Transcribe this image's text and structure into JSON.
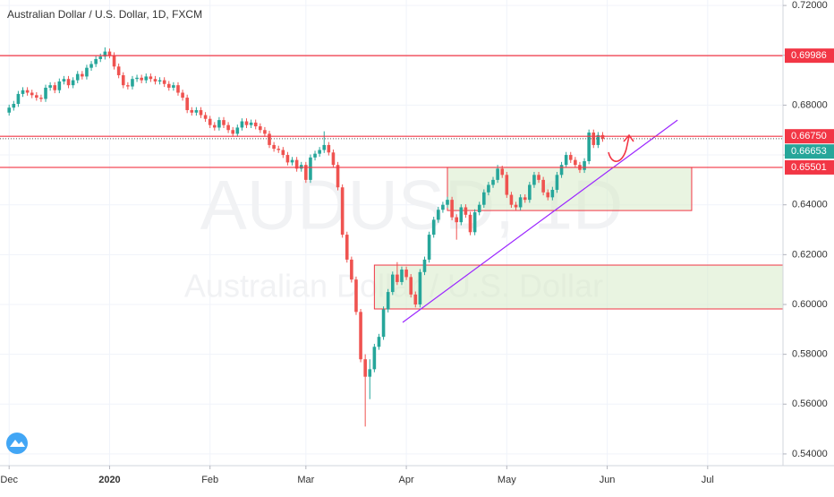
{
  "chart_data": {
    "type": "candlestick",
    "title": "Australian Dollar / U.S. Dollar, 1D, FXCM",
    "watermark": "AUDUSD, 1D",
    "watermark_subtitle": "Australian Dollar / U.S. Dollar",
    "up_color": "#26a69a",
    "down_color": "#ef5350",
    "grid": true,
    "xlim": [
      -2,
      169.5
    ],
    "xticks": [
      {
        "value": 0,
        "label": "Dec"
      },
      {
        "value": 22,
        "label": "2020"
      },
      {
        "value": 44,
        "label": "Feb"
      },
      {
        "value": 65,
        "label": "Mar"
      },
      {
        "value": 87,
        "label": "Apr"
      },
      {
        "value": 109,
        "label": "May"
      },
      {
        "value": 131,
        "label": "Jun"
      },
      {
        "value": 153,
        "label": "Jul"
      }
    ],
    "ylim": [
      0.5353,
      0.7222
    ],
    "yticks": [
      {
        "value": 0.72,
        "label": "0.72000"
      },
      {
        "value": 0.7,
        "label": "0.70000"
      },
      {
        "value": 0.68,
        "label": "0.68000"
      },
      {
        "value": 0.66,
        "label": "0.66000"
      },
      {
        "value": 0.64,
        "label": "0.64000"
      },
      {
        "value": 0.62,
        "label": "0.62000"
      },
      {
        "value": 0.6,
        "label": "0.60000"
      },
      {
        "value": 0.58,
        "label": "0.58000"
      },
      {
        "value": 0.56,
        "label": "0.56000"
      },
      {
        "value": 0.54,
        "label": "0.54000"
      }
    ],
    "open": [
      0.677,
      0.679,
      0.6805,
      0.6845,
      0.686,
      0.685,
      0.684,
      0.683,
      0.6825,
      0.687,
      0.688,
      0.686,
      0.6895,
      0.6905,
      0.688,
      0.69,
      0.6925,
      0.6915,
      0.695,
      0.6965,
      0.6985,
      0.6995,
      0.7015,
      0.7,
      0.6955,
      0.692,
      0.688,
      0.6875,
      0.6905,
      0.691,
      0.69,
      0.6915,
      0.6905,
      0.6895,
      0.69,
      0.6885,
      0.687,
      0.688,
      0.685,
      0.683,
      0.678,
      0.677,
      0.678,
      0.676,
      0.6745,
      0.672,
      0.671,
      0.674,
      0.672,
      0.67,
      0.6685,
      0.671,
      0.6735,
      0.672,
      0.673,
      0.6715,
      0.67,
      0.6685,
      0.664,
      0.6625,
      0.662,
      0.66,
      0.657,
      0.658,
      0.6545,
      0.656,
      0.65,
      0.659,
      0.6605,
      0.662,
      0.664,
      0.661,
      0.656,
      0.647,
      0.628,
      0.618,
      0.61,
      0.597,
      0.578,
      0.571,
      0.574,
      0.583,
      0.587,
      0.598,
      0.605,
      0.612,
      0.609,
      0.614,
      0.611,
      0.604,
      0.6,
      0.613,
      0.618,
      0.628,
      0.634,
      0.638,
      0.64,
      0.642,
      0.635,
      0.633,
      0.639,
      0.636,
      0.629,
      0.637,
      0.64,
      0.645,
      0.648,
      0.65,
      0.6545,
      0.652,
      0.644,
      0.64,
      0.639,
      0.643,
      0.642,
      0.648,
      0.652,
      0.65,
      0.645,
      0.643,
      0.646,
      0.652,
      0.656,
      0.66,
      0.658,
      0.656,
      0.654,
      0.6575,
      0.669,
      0.664,
      0.668
    ],
    "high": [
      0.6802,
      0.6817,
      0.6857,
      0.6872,
      0.6872,
      0.6862,
      0.6852,
      0.6842,
      0.6882,
      0.6892,
      0.6892,
      0.6907,
      0.6917,
      0.6917,
      0.6912,
      0.6937,
      0.6937,
      0.6962,
      0.6977,
      0.6997,
      0.7007,
      0.7032,
      0.7027,
      0.7012,
      0.6967,
      0.6932,
      0.6892,
      0.6917,
      0.6922,
      0.6922,
      0.6927,
      0.6927,
      0.6917,
      0.6912,
      0.6912,
      0.6897,
      0.6892,
      0.6892,
      0.6862,
      0.6842,
      0.6792,
      0.6792,
      0.6792,
      0.6772,
      0.6757,
      0.6732,
      0.6752,
      0.6752,
      0.6732,
      0.6712,
      0.6722,
      0.6747,
      0.6747,
      0.6742,
      0.6742,
      0.6727,
      0.6712,
      0.6697,
      0.6652,
      0.6637,
      0.6632,
      0.6612,
      0.6592,
      0.6592,
      0.6572,
      0.6572,
      0.6602,
      0.6617,
      0.6632,
      0.6695,
      0.6652,
      0.6622,
      0.6572,
      0.6482,
      0.6292,
      0.6192,
      0.6112,
      0.5982,
      0.58,
      0.578,
      0.5842,
      0.5882,
      0.5992,
      0.6062,
      0.6132,
      0.617,
      0.6152,
      0.6152,
      0.6122,
      0.6052,
      0.6142,
      0.6192,
      0.6292,
      0.6352,
      0.6392,
      0.6412,
      0.6432,
      0.6432,
      0.6362,
      0.6402,
      0.6402,
      0.6372,
      0.6382,
      0.6412,
      0.6462,
      0.6492,
      0.6512,
      0.656,
      0.6557,
      0.6532,
      0.6452,
      0.6412,
      0.6442,
      0.6442,
      0.6492,
      0.6532,
      0.6532,
      0.6512,
      0.6462,
      0.6472,
      0.6532,
      0.6572,
      0.6612,
      0.6612,
      0.6592,
      0.6572,
      0.6587,
      0.6702,
      0.6702,
      0.6692,
      0.6692
    ],
    "low": [
      0.6758,
      0.6778,
      0.6793,
      0.6833,
      0.6838,
      0.6828,
      0.6818,
      0.6813,
      0.6813,
      0.6858,
      0.6848,
      0.6848,
      0.6883,
      0.6868,
      0.6868,
      0.6888,
      0.6903,
      0.6903,
      0.6938,
      0.6953,
      0.6973,
      0.6983,
      0.6988,
      0.6943,
      0.6908,
      0.6868,
      0.6863,
      0.6863,
      0.6893,
      0.6888,
      0.6888,
      0.6893,
      0.6883,
      0.6883,
      0.6873,
      0.6858,
      0.6858,
      0.6838,
      0.6818,
      0.6768,
      0.6758,
      0.6758,
      0.6748,
      0.6733,
      0.6708,
      0.6698,
      0.6698,
      0.6708,
      0.6688,
      0.6673,
      0.6673,
      0.6698,
      0.6708,
      0.6708,
      0.6703,
      0.6688,
      0.6673,
      0.6628,
      0.6613,
      0.6608,
      0.6588,
      0.6558,
      0.6558,
      0.6533,
      0.6533,
      0.6488,
      0.6488,
      0.6578,
      0.6593,
      0.6608,
      0.6598,
      0.6548,
      0.6458,
      0.6268,
      0.6168,
      0.6088,
      0.5958,
      0.5768,
      0.551,
      0.562,
      0.5728,
      0.5818,
      0.5858,
      0.5968,
      0.6038,
      0.6078,
      0.6078,
      0.6098,
      0.6028,
      0.5988,
      0.5988,
      0.6118,
      0.6168,
      0.6268,
      0.6328,
      0.6368,
      0.6388,
      0.6338,
      0.626,
      0.6318,
      0.6348,
      0.6278,
      0.6278,
      0.6358,
      0.6388,
      0.6438,
      0.6468,
      0.6488,
      0.6508,
      0.6428,
      0.6388,
      0.6378,
      0.6378,
      0.6408,
      0.6408,
      0.6468,
      0.6488,
      0.6438,
      0.6418,
      0.6418,
      0.6448,
      0.6508,
      0.6548,
      0.6568,
      0.6548,
      0.6528,
      0.6528,
      0.6563,
      0.6628,
      0.6628,
      0.6653
    ],
    "close": [
      0.679,
      0.6805,
      0.6845,
      0.686,
      0.685,
      0.684,
      0.683,
      0.6825,
      0.687,
      0.688,
      0.686,
      0.6895,
      0.6905,
      0.688,
      0.69,
      0.6925,
      0.6915,
      0.695,
      0.6965,
      0.6985,
      0.6995,
      0.7015,
      0.7,
      0.6955,
      0.692,
      0.688,
      0.6875,
      0.6905,
      0.691,
      0.69,
      0.6915,
      0.6905,
      0.6895,
      0.69,
      0.6885,
      0.687,
      0.688,
      0.685,
      0.683,
      0.678,
      0.677,
      0.678,
      0.676,
      0.6745,
      0.672,
      0.671,
      0.674,
      0.672,
      0.67,
      0.6685,
      0.671,
      0.6735,
      0.672,
      0.673,
      0.6715,
      0.67,
      0.6685,
      0.664,
      0.6625,
      0.662,
      0.66,
      0.657,
      0.658,
      0.6545,
      0.656,
      0.65,
      0.659,
      0.6605,
      0.662,
      0.664,
      0.661,
      0.656,
      0.647,
      0.628,
      0.618,
      0.61,
      0.597,
      0.578,
      0.571,
      0.574,
      0.583,
      0.587,
      0.598,
      0.605,
      0.612,
      0.609,
      0.614,
      0.611,
      0.604,
      0.6,
      0.613,
      0.618,
      0.628,
      0.634,
      0.638,
      0.64,
      0.642,
      0.635,
      0.633,
      0.639,
      0.636,
      0.629,
      0.637,
      0.64,
      0.645,
      0.648,
      0.65,
      0.6545,
      0.652,
      0.644,
      0.64,
      0.639,
      0.643,
      0.642,
      0.648,
      0.652,
      0.65,
      0.645,
      0.643,
      0.646,
      0.652,
      0.656,
      0.66,
      0.658,
      0.656,
      0.654,
      0.6575,
      0.669,
      0.664,
      0.668,
      0.6665
    ],
    "price_lines": [
      {
        "value": 0.69986,
        "label": "0.69986"
      },
      {
        "value": 0.6675,
        "label": "0.66750"
      },
      {
        "value": 0.65501,
        "label": "0.65501"
      }
    ],
    "price_line_color": "#f23645",
    "last_price": {
      "value": 0.66653,
      "label": "0.66653"
    },
    "last_price_color": "#26a69a",
    "zones": [
      {
        "x": [
          96,
          149.5
        ],
        "y": [
          0.6377,
          0.655
        ]
      },
      {
        "x": [
          80,
          169.5
        ],
        "y": [
          0.5982,
          0.6158
        ]
      }
    ],
    "zone_color": "#d7ebc8",
    "zone_border": "#f23645",
    "trendline": {
      "x": [
        86.2,
        146.4
      ],
      "y": [
        0.5928,
        0.674
      ],
      "color": "#9c27ff"
    }
  }
}
